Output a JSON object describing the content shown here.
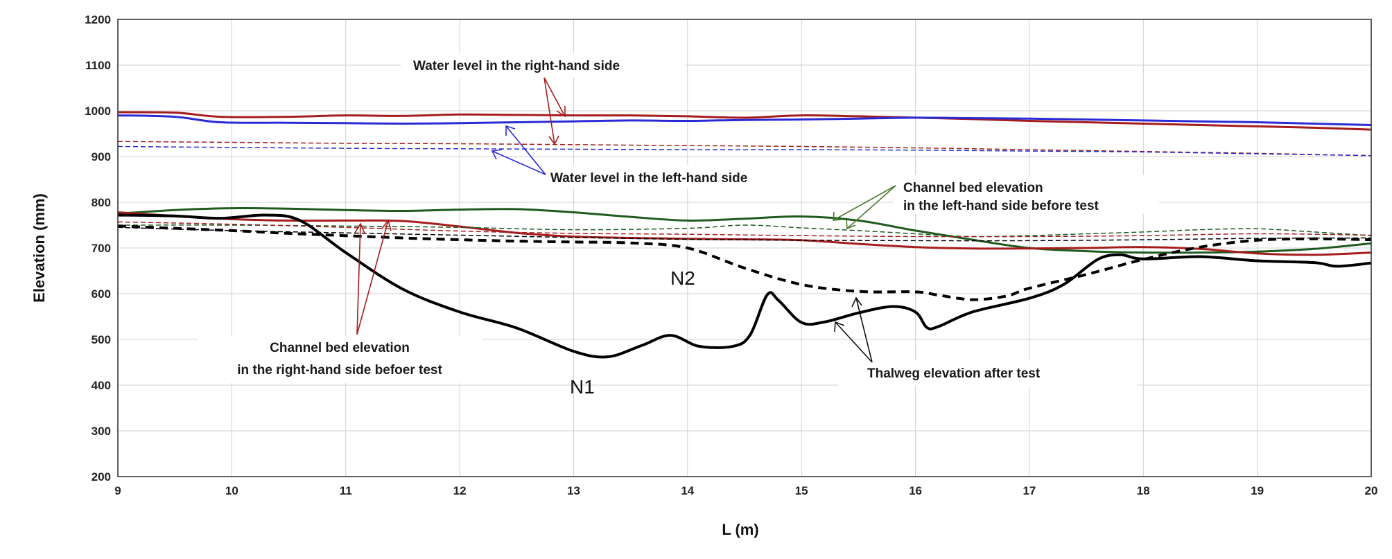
{
  "chart_data": {
    "type": "line",
    "xlabel": "L (m)",
    "ylabel": "Elevation (mm)",
    "xlim": [
      9,
      20
    ],
    "ylim": [
      200,
      1200
    ],
    "xticks": [
      "9",
      "10",
      "11",
      "12",
      "13",
      "14",
      "15",
      "16",
      "17",
      "18",
      "19",
      "20"
    ],
    "yticks": [
      "200",
      "300",
      "400",
      "500",
      "600",
      "700",
      "800",
      "900",
      "1000",
      "1100",
      "1200"
    ],
    "grid": true,
    "legend": "none",
    "colors": {
      "red": "#a51c1c",
      "blue": "#2a2ad6",
      "green": "#1f5a1f",
      "black": "#000000"
    },
    "series": [
      {
        "color": "#a51c1c",
        "style": "solid",
        "width": 3,
        "x": [
          9,
          9.5,
          9.9,
          10.5,
          11,
          11.5,
          12,
          12.5,
          13,
          13.5,
          14,
          14.5,
          15,
          15.5,
          16,
          16.5,
          17,
          17.5,
          18,
          18.5,
          19,
          19.5,
          20
        ],
        "y": [
          997,
          996,
          987,
          987,
          990,
          989,
          992,
          991,
          990,
          990,
          988,
          985,
          990,
          988,
          985,
          982,
          978,
          975,
          972,
          969,
          966,
          963,
          959
        ]
      },
      {
        "color": "#2a2ad6",
        "style": "solid",
        "width": 3,
        "x": [
          9,
          9.5,
          9.9,
          10.5,
          11,
          11.5,
          12,
          12.5,
          13,
          13.5,
          14,
          14.5,
          15,
          15.5,
          16,
          16.5,
          17,
          17.5,
          18,
          18.5,
          19,
          19.5,
          20
        ],
        "y": [
          990,
          987,
          975,
          974,
          973,
          972,
          973,
          975,
          977,
          979,
          978,
          980,
          981,
          983,
          985,
          984,
          983,
          981,
          979,
          977,
          975,
          972,
          969
        ]
      },
      {
        "color": "#a51c1c",
        "style": "dashed",
        "width": 1.5,
        "x": [
          9,
          10,
          11,
          12,
          13,
          14,
          15,
          16,
          17,
          18,
          19,
          20
        ],
        "y": [
          933,
          931,
          929,
          928,
          926,
          924,
          922,
          919,
          915,
          911,
          907,
          902
        ]
      },
      {
        "color": "#2a2ad6",
        "style": "dashed",
        "width": 1.5,
        "x": [
          9,
          10,
          11,
          12,
          13,
          14,
          15,
          16,
          17,
          18,
          19,
          20
        ],
        "y": [
          922,
          920,
          918,
          917,
          916,
          915,
          915,
          914,
          912,
          910,
          906,
          902
        ]
      },
      {
        "color": "#1f5a1f",
        "style": "solid",
        "width": 3,
        "x": [
          9,
          9.5,
          10,
          10.5,
          11,
          11.5,
          12,
          12.5,
          13,
          13.5,
          14,
          14.5,
          15,
          15.5,
          16,
          16.5,
          17,
          17.5,
          18,
          18.5,
          19,
          19.5,
          20
        ],
        "y": [
          775,
          783,
          787,
          786,
          783,
          781,
          784,
          785,
          778,
          768,
          760,
          764,
          769,
          760,
          738,
          718,
          700,
          693,
          690,
          690,
          692,
          698,
          710
        ]
      },
      {
        "color": "#a51c1c",
        "style": "solid",
        "width": 3,
        "x": [
          9,
          9.5,
          10,
          10.5,
          11,
          11.5,
          12,
          12.5,
          13,
          13.5,
          14,
          14.5,
          15,
          15.5,
          16,
          16.5,
          17,
          17.5,
          18,
          18.5,
          19,
          19.5,
          20
        ],
        "y": [
          778,
          770,
          763,
          760,
          760,
          759,
          747,
          733,
          725,
          722,
          720,
          719,
          717,
          709,
          702,
          699,
          699,
          700,
          702,
          698,
          688,
          685,
          690
        ]
      },
      {
        "color": "#1f5a1f",
        "style": "dashed",
        "width": 1.5,
        "x": [
          9,
          10,
          11,
          12,
          13,
          14,
          14.5,
          15,
          15.5,
          16,
          16.5,
          17,
          17.5,
          18,
          18.5,
          19,
          19.5,
          20
        ],
        "y": [
          750,
          750,
          748,
          745,
          740,
          743,
          750,
          744,
          738,
          731,
          725,
          727,
          731,
          735,
          740,
          742,
          735,
          727
        ]
      },
      {
        "color": "#a51c1c",
        "style": "dashed",
        "width": 1.5,
        "x": [
          9,
          10,
          11,
          12,
          13,
          14,
          15,
          16,
          17,
          18,
          19,
          20
        ],
        "y": [
          757,
          752,
          745,
          737,
          732,
          730,
          727,
          725,
          725,
          727,
          731,
          728
        ]
      },
      {
        "color": "#000000",
        "style": "dashed",
        "width": 1.5,
        "x": [
          9,
          10,
          11,
          12,
          13,
          14,
          15,
          16,
          17,
          18,
          19,
          20
        ],
        "y": [
          745,
          738,
          733,
          728,
          723,
          719,
          717,
          716,
          716,
          718,
          721,
          722
        ]
      },
      {
        "name": "N2",
        "color": "#000000",
        "style": "dashed",
        "width": 4,
        "x": [
          9,
          9.5,
          10,
          10.5,
          11,
          11.5,
          12,
          12.5,
          13,
          13.5,
          14,
          14.5,
          15,
          15.5,
          16,
          16.2,
          16.5,
          16.8,
          17,
          17.5,
          18,
          18.5,
          19,
          19.5,
          20
        ],
        "y": [
          748,
          743,
          738,
          732,
          727,
          722,
          718,
          715,
          713,
          711,
          700,
          656,
          620,
          605,
          604,
          597,
          587,
          595,
          612,
          642,
          675,
          702,
          717,
          720,
          718
        ]
      },
      {
        "name": "N1",
        "color": "#000000",
        "style": "solid",
        "width": 4,
        "x": [
          9,
          9.5,
          9.9,
          10.3,
          10.6,
          11,
          11.5,
          12,
          12.5,
          13,
          13.3,
          13.6,
          13.85,
          14.1,
          14.4,
          14.55,
          14.7,
          14.8,
          15,
          15.2,
          15.5,
          15.8,
          16,
          16.1,
          16.2,
          16.5,
          17,
          17.3,
          17.6,
          17.8,
          18,
          18.5,
          19,
          19.5,
          19.7,
          20
        ],
        "y": [
          772,
          770,
          765,
          772,
          760,
          690,
          610,
          560,
          525,
          474,
          462,
          487,
          509,
          485,
          485,
          510,
          598,
          585,
          537,
          538,
          558,
          572,
          560,
          526,
          528,
          560,
          590,
          620,
          675,
          685,
          676,
          681,
          672,
          668,
          660,
          667
        ]
      }
    ],
    "annotations": {
      "water_right": "Water level in the right-hand side",
      "water_left": "Water level in the left-hand side",
      "bed_left_line1": "Channel bed elevation",
      "bed_left_line2": "in the left-hand side before test",
      "bed_right_line1": "Channel bed elevation",
      "bed_right_line2": "in the right-hand side befoer test",
      "thalweg": "Thalweg elevation after test",
      "n1": "N1",
      "n2": "N2"
    }
  }
}
